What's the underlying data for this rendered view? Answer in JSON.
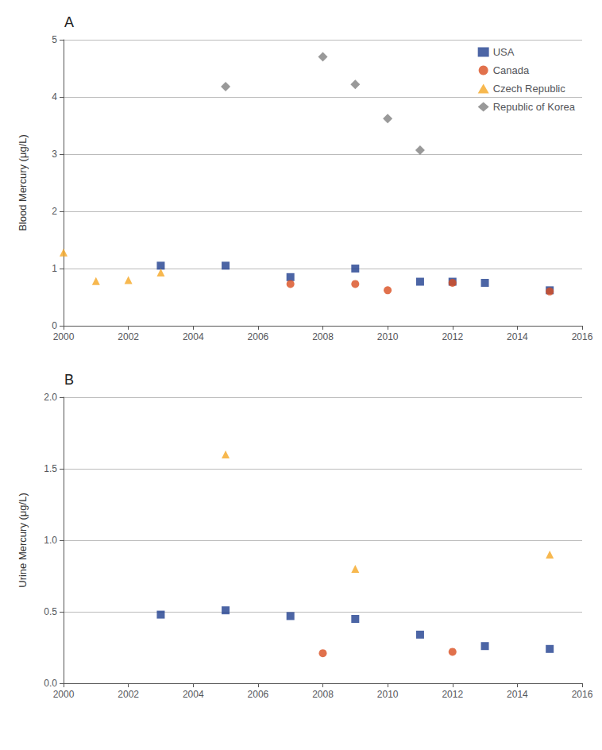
{
  "chart_data": [
    {
      "type": "scatter",
      "title": "A",
      "ylabel": "Blood Mercury (μg/L)",
      "xlim": [
        2000,
        2016
      ],
      "xticks": [
        2000,
        2002,
        2004,
        2006,
        2008,
        2010,
        2012,
        2014,
        2016
      ],
      "ylim": [
        0,
        5
      ],
      "yticks": [
        0,
        1,
        2,
        3,
        4,
        5
      ],
      "grid": true,
      "legend": "upper right",
      "series": [
        {
          "name": "USA",
          "color": "#1F3E8F",
          "marker": "square",
          "x": [
            2003,
            2005,
            2007,
            2009,
            2011,
            2012,
            2013,
            2015
          ],
          "values": [
            1.05,
            1.05,
            0.85,
            1.0,
            0.77,
            0.77,
            0.75,
            0.62
          ]
        },
        {
          "name": "Canada",
          "color": "#D94E1F",
          "marker": "circle",
          "x": [
            2007,
            2009,
            2010,
            2012,
            2015
          ],
          "values": [
            0.73,
            0.73,
            0.62,
            0.75,
            0.6
          ]
        },
        {
          "name": "Czech Republic",
          "color": "#F5A623",
          "marker": "triangle",
          "x": [
            2000,
            2001,
            2002,
            2003
          ],
          "values": [
            1.28,
            0.78,
            0.8,
            0.93
          ]
        },
        {
          "name": "Republic of Korea",
          "color": "#7F7F7F",
          "marker": "diamond",
          "x": [
            2005,
            2008,
            2009,
            2010,
            2011
          ],
          "values": [
            4.18,
            4.7,
            4.22,
            3.62,
            3.07
          ]
        }
      ]
    },
    {
      "type": "scatter",
      "title": "B",
      "ylabel": "Urine Mercury (μg/L)",
      "xlim": [
        2000,
        2016
      ],
      "xticks": [
        2000,
        2002,
        2004,
        2006,
        2008,
        2010,
        2012,
        2014,
        2016
      ],
      "ylim": [
        0,
        2
      ],
      "yticks": [
        {
          "value": 0,
          "label": "0.0"
        },
        0.5,
        {
          "value": 1.0,
          "label": "1.0"
        },
        1.5,
        {
          "value": 2.0,
          "label": "2.0"
        }
      ],
      "grid": true,
      "series": [
        {
          "name": "USA",
          "color": "#1F3E8F",
          "marker": "square",
          "x": [
            2003,
            2005,
            2007,
            2009,
            2011,
            2013,
            2015
          ],
          "values": [
            0.48,
            0.51,
            0.47,
            0.45,
            0.34,
            0.26,
            0.24
          ]
        },
        {
          "name": "Canada",
          "color": "#D94E1F",
          "marker": "circle",
          "x": [
            2008,
            2012
          ],
          "values": [
            0.21,
            0.22
          ]
        },
        {
          "name": "Czech Republic",
          "color": "#F5A623",
          "marker": "triangle",
          "x": [
            2005,
            2009,
            2015
          ],
          "values": [
            1.6,
            0.8,
            0.9
          ]
        }
      ]
    }
  ]
}
